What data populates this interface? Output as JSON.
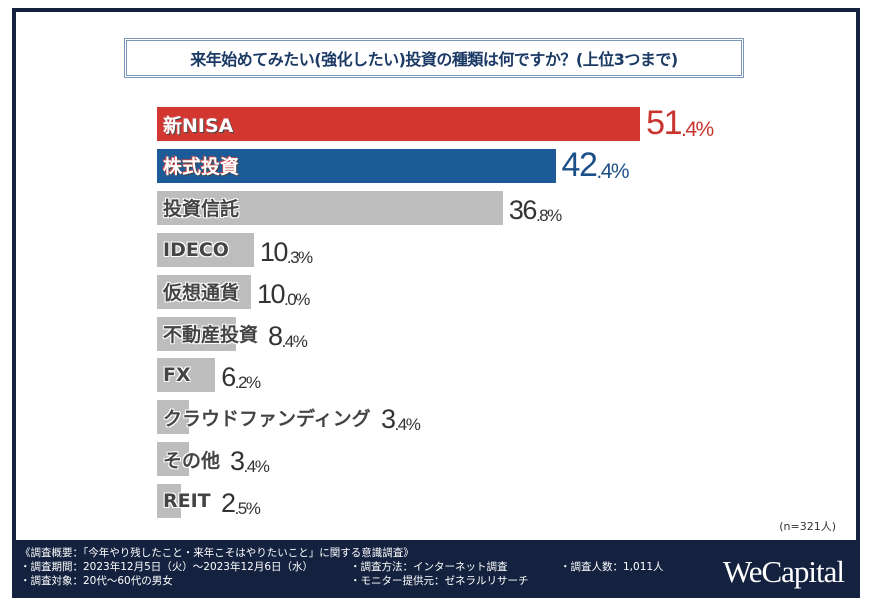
{
  "title": "来年始めてみたい(強化したい)投資の種類は何ですか？(上位3つまで)",
  "sample_note": "(n=321人)",
  "chart_data": {
    "type": "bar",
    "orientation": "horizontal",
    "title": "来年始めてみたい(強化したい)投資の種類は何ですか？(上位3つまで)",
    "categories": [
      "新NISA",
      "株式投資",
      "投資信託",
      "IDECO",
      "仮想通貨",
      "不動産投資",
      "FX",
      "クラウドファンディング",
      "その他",
      "REIT"
    ],
    "values": [
      51.4,
      42.4,
      36.8,
      10.3,
      10.0,
      8.4,
      6.2,
      3.4,
      3.4,
      2.5
    ],
    "unit": "%",
    "value_labels": [
      [
        "51",
        ".4%"
      ],
      [
        "42",
        ".4%"
      ],
      [
        "36",
        ".8%"
      ],
      [
        "10",
        ".3%"
      ],
      [
        "10",
        ".0%"
      ],
      [
        "8",
        ".4%"
      ],
      [
        "6",
        ".2%"
      ],
      [
        "3",
        ".4%"
      ],
      [
        "3",
        ".4%"
      ],
      [
        "2",
        ".5%"
      ]
    ],
    "colors": [
      "#d2382f",
      "#1d5b98",
      "#bdbdbd",
      "#bdbdbd",
      "#bdbdbd",
      "#bdbdbd",
      "#bdbdbd",
      "#bdbdbd",
      "#bdbdbd",
      "#bdbdbd"
    ],
    "value_colors": [
      "#c8342d",
      "#1d4f88",
      "#333333",
      "#333333",
      "#333333",
      "#333333",
      "#333333",
      "#333333",
      "#333333",
      "#333333"
    ],
    "grid": false,
    "legend": "none"
  },
  "footer": {
    "summary": "《調査概要：「今年やり残したこと・来年こそはやりたいこと」に関する意識調査》",
    "period": "・調査期間：2023年12月5日（火）～2023年12月6日（水）",
    "target": "・調査対象：20代～60代の男女",
    "method": "・調査方法：インターネット調査",
    "provider": "・モニター提供元：ゼネラルリサーチ",
    "respondents": "・調査人数：1,011人"
  },
  "brand": "WeCapital"
}
